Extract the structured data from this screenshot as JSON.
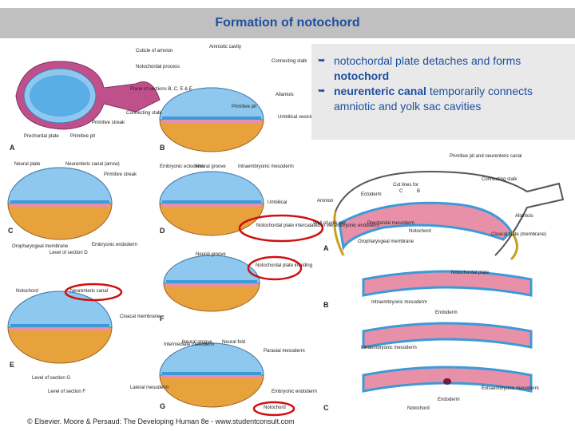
{
  "header": {
    "title": "Formation of notochord"
  },
  "bullets": [
    {
      "text": "notochordal plate detaches and forms",
      "term": "notochord"
    },
    {
      "term": "neurenteric canal",
      "text": "temporarily connects amniotic and yolk sac cavities"
    }
  ],
  "figure_left": {
    "labels": [
      "Cuticle of amnion",
      "Amniotic cavity",
      "Notochordal process",
      "Connecting stalk",
      "Plane of sections B, C, E & E",
      "Allantois",
      "Connecting stalk",
      "Primitive pit",
      "Umbilical vesicle",
      "Primitive streak",
      "Prechordal plate",
      "Primitive pit",
      "A",
      "B",
      "Neural plate",
      "Neurenteric canal (arrow)",
      "Embryonic ectoderm",
      "Neural groove",
      "Intraembryonic mesoderm",
      "Primitive streak",
      "C",
      "D",
      "Oropharyngeal membrane",
      "Embryonic endoderm",
      "Level of section D",
      "Umbilical",
      "Notochordal plate intercalated in the embryonic endoderm",
      "Neural groove",
      "Notochordal plate infolding",
      "Notochord",
      "Neurenteric canal",
      "Cloacal membrane",
      "E",
      "F",
      "Intermediate mesoderm",
      "Neural groove",
      "Neural fold",
      "Paraxial mesoderm",
      "Level of section G",
      "Level of section F",
      "Lateral mesoderm",
      "Embryonic endoderm",
      "Notochord",
      "G"
    ]
  },
  "figure_right": {
    "labels": [
      "Primitive pit and neurenteric canal",
      "Connecting stalk",
      "Cut lines for",
      "C",
      "B",
      "Ectoderm",
      "Amnion",
      "Wall of yolk sac",
      "Prechordal mesoderm",
      "Allantois",
      "Notochord",
      "Oropharyngeal membrane",
      "Cloacal plate (membrane)",
      "A",
      "Notochordal plate",
      "B",
      "Intraembryonic mesoderm",
      "Endoderm",
      "Intraembryonic mesoderm",
      "Extraembryonic mesoderm",
      "Endoderm",
      "Notochord",
      "C"
    ]
  },
  "footer": "© Elsevier. Moore & Persaud: The Developing Human 8e - www.studentconsult.com"
}
